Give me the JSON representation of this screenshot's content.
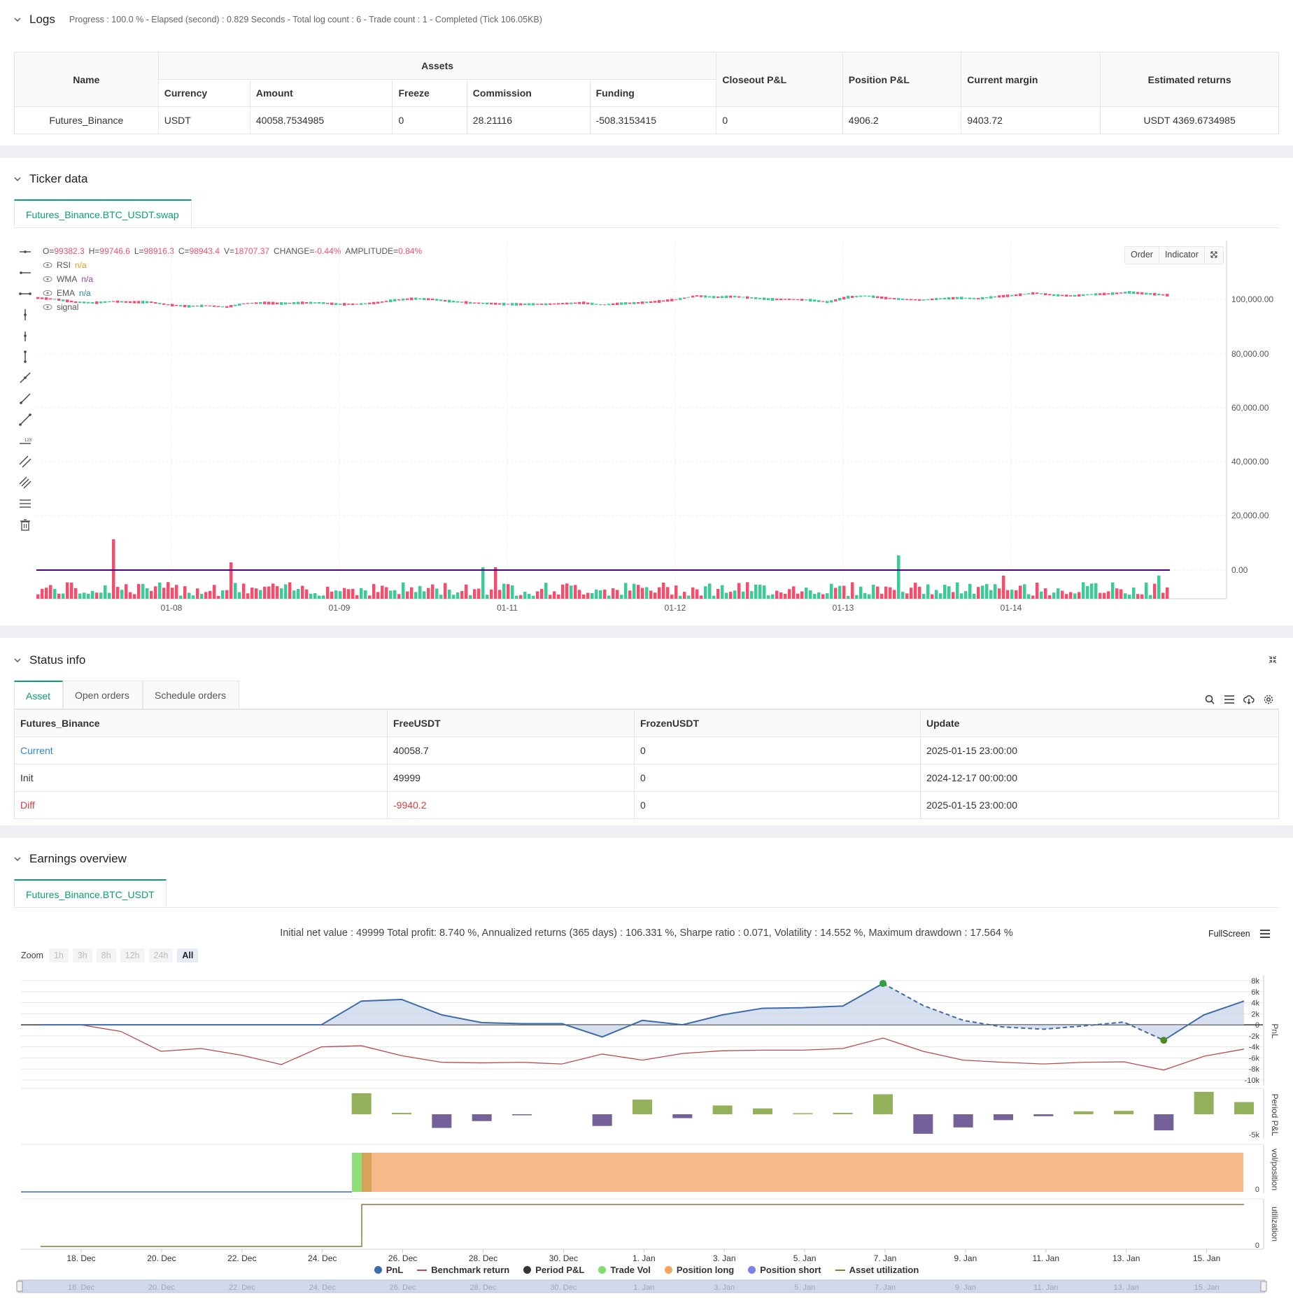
{
  "logs": {
    "title": "Logs",
    "summary": "Progress : 100.0 % - Elapsed (second) : 0.829 Seconds - Total log count : 6 - Trade count : 1 - Completed (Tick 106.05KB)",
    "table": {
      "name_header": "Name",
      "assets_header": "Assets",
      "sub_headers": [
        "Currency",
        "Amount",
        "Freeze",
        "Commission",
        "Funding"
      ],
      "right_headers": [
        "Closeout P&L",
        "Position P&L",
        "Current margin",
        "Estimated returns"
      ],
      "row": [
        "Futures_Binance",
        "USDT",
        "40058.7534985",
        "0",
        "28.21116",
        "-508.3153415",
        "0",
        "4906.2",
        "9403.72",
        "USDT 4369.6734985"
      ]
    }
  },
  "ticker": {
    "title": "Ticker data",
    "tab": "Futures_Binance.BTC_USDT.swap",
    "ohlc": {
      "o_label": "O=",
      "o": "99382.3",
      "h_label": "H=",
      "h": "99746.6",
      "l_label": "L=",
      "l": "98916.3",
      "c_label": "C=",
      "c": "98943.4",
      "v_label": "V=",
      "v": "18707.37",
      "chg_label": "CHANGE=",
      "chg": "-0.44%",
      "amp_label": "AMPLITUDE=",
      "amp": "0.84%"
    },
    "indicators": [
      {
        "name": "RSI",
        "value": "n/a",
        "color": "#f39c12"
      },
      {
        "name": "WMA",
        "value": "n/a",
        "color": "#8e44ad"
      },
      {
        "name": "EMA",
        "value": "n/a",
        "color": "#2980b9"
      },
      {
        "name": "signal",
        "value": "",
        "color": "#999999"
      }
    ],
    "buttons": {
      "order": "Order",
      "indicator": "Indicator"
    },
    "y_ticks": [
      "100,000.00",
      "80,000.00",
      "60,000.00",
      "40,000.00",
      "20,000.00",
      "0.00"
    ],
    "x_ticks": [
      "01-08",
      "01-09",
      "01-11",
      "01-12",
      "01-13",
      "01-14"
    ],
    "colors": {
      "up": "#3ec99a",
      "down": "#f0506e"
    }
  },
  "status": {
    "title": "Status info",
    "tabs": [
      "Asset",
      "Open orders",
      "Schedule orders"
    ],
    "headers": [
      "Futures_Binance",
      "FreeUSDT",
      "FrozenUSDT",
      "Update"
    ],
    "rows": [
      [
        "Current",
        "40058.7",
        "0",
        "2025-01-15 23:00:00"
      ],
      [
        "Init",
        "49999",
        "0",
        "2024-12-17 00:00:00"
      ],
      [
        "Diff",
        "-9940.2",
        "0",
        "2025-01-15 23:00:00"
      ]
    ]
  },
  "earnings": {
    "title": "Earnings overview",
    "tab": "Futures_Binance.BTC_USDT",
    "summary": "Initial net value : 49999 Total profit: 8.740 %, Annualized returns (365 days) : 106.331 %, Sharpe ratio : 0.071, Volatility : 14.552 %, Maximum drawdown : 17.564 %",
    "fullscreen": "FullScreen",
    "zoom_label": "Zoom",
    "zoom_options": [
      "1h",
      "3h",
      "8h",
      "12h",
      "24h",
      "All"
    ],
    "zoom_selected": "All",
    "pnl_ticks": [
      "8k",
      "6k",
      "4k",
      "2k",
      "0",
      "-2k",
      "-4k",
      "-6k",
      "-8k",
      "-10k"
    ],
    "period_tick": "-5k",
    "vol_tick": "0",
    "util_tick": "0",
    "axis_labels": {
      "pnl": "PnL",
      "period": "Period P&L",
      "vol": "vol/position",
      "util": "utilization"
    },
    "x_ticks": [
      "18. Dec",
      "20. Dec",
      "22. Dec",
      "24. Dec",
      "26. Dec",
      "28. Dec",
      "30. Dec",
      "1. Jan",
      "3. Jan",
      "5. Jan",
      "7. Jan",
      "9. Jan",
      "11. Jan",
      "13. Jan",
      "15. Jan"
    ],
    "legend": [
      {
        "name": "PnL",
        "color": "#3d6aa8"
      },
      {
        "name": "Benchmark return",
        "color": "#b84a4a"
      },
      {
        "name": "Period P&L",
        "color": "#333333"
      },
      {
        "name": "Trade Vol",
        "color": "#7fdd6e"
      },
      {
        "name": "Position long",
        "color": "#f5a25d"
      },
      {
        "name": "Position short",
        "color": "#7f7fe8"
      },
      {
        "name": "Asset utilization",
        "color": "#8a7a3a"
      }
    ],
    "chart_data": {
      "type": "line",
      "x": [
        "12-17",
        "12-18",
        "12-19",
        "12-20",
        "12-21",
        "12-22",
        "12-23",
        "12-24",
        "12-25",
        "12-26",
        "12-27",
        "12-28",
        "12-29",
        "12-30",
        "12-31",
        "01-01",
        "01-02",
        "01-03",
        "01-04",
        "01-05",
        "01-06",
        "01-07",
        "01-08",
        "01-09",
        "01-10",
        "01-11",
        "01-12",
        "01-13",
        "01-14",
        "01-15",
        "01-16"
      ],
      "series": [
        {
          "name": "PnL",
          "values": [
            0,
            0,
            0,
            0,
            0,
            0,
            0,
            0,
            4300,
            4600,
            1800,
            400,
            200,
            200,
            -2200,
            800,
            0,
            1800,
            3000,
            3100,
            3400,
            7500,
            3500,
            800,
            -400,
            -800,
            -200,
            500,
            -2800,
            1800,
            4300
          ]
        },
        {
          "name": "Benchmark return",
          "values": [
            0,
            0,
            -1200,
            -4800,
            -4300,
            -5500,
            -7200,
            -4000,
            -3800,
            -5600,
            -6800,
            -6900,
            -6800,
            -7100,
            -5300,
            -6400,
            -5200,
            -4700,
            -4600,
            -4600,
            -4300,
            -2400,
            -4800,
            -6400,
            -6800,
            -7100,
            -6800,
            -6700,
            -8200,
            -5700,
            -4400
          ]
        },
        {
          "name": "Period P&L",
          "values": [
            0,
            0,
            0,
            0,
            0,
            0,
            0,
            0,
            4300,
            300,
            -2800,
            -1400,
            -200,
            0,
            -2400,
            3000,
            -800,
            1800,
            1200,
            100,
            300,
            4100,
            -4000,
            -2700,
            -1200,
            -400,
            600,
            700,
            -3300,
            4600,
            2500
          ]
        }
      ],
      "ylim": [
        -10000,
        8000
      ]
    }
  }
}
